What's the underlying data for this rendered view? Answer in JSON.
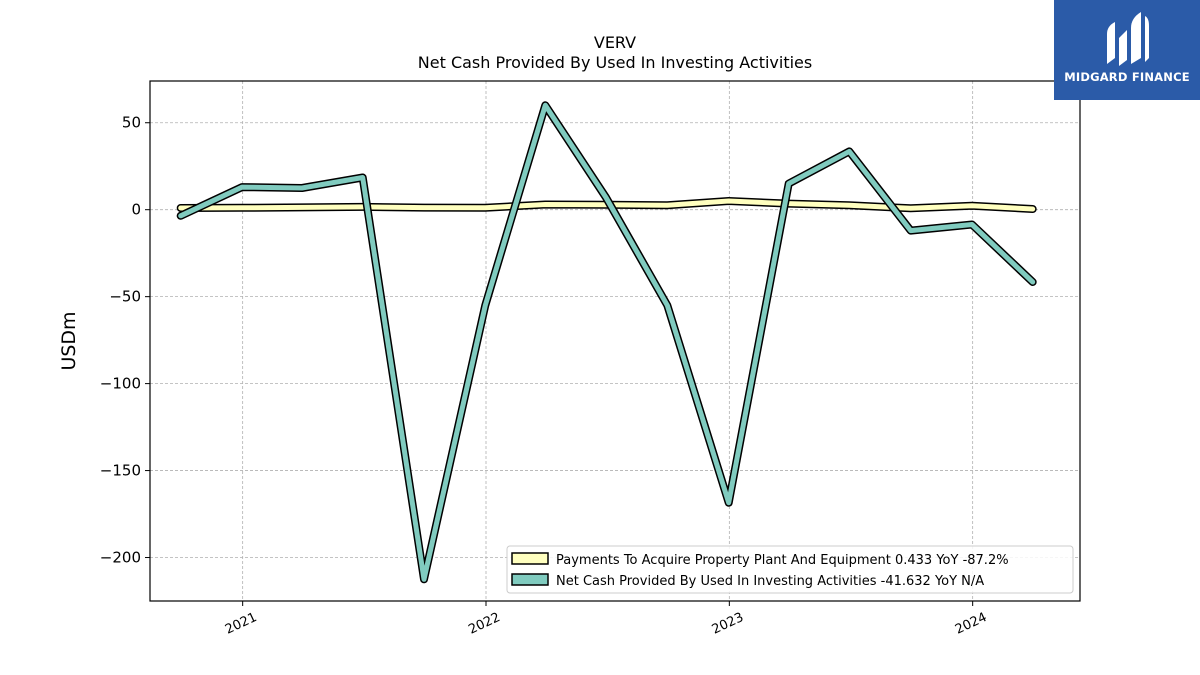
{
  "brand": {
    "name": "MIDGARD FINANCE",
    "icon": "midgard-finance-logo-icon",
    "color": "#2b5ba8"
  },
  "chart_data": {
    "type": "line",
    "title": "VERV",
    "subtitle": "Net Cash Provided By Used In Investing Activities",
    "xlabel": "",
    "ylabel": "USDm",
    "ylim": [
      -225,
      74
    ],
    "xlim": [
      "2020-08-15",
      "2024-06-10"
    ],
    "yticks": [
      50,
      0,
      -50,
      -100,
      -150,
      -200
    ],
    "ytick_labels": [
      "50",
      "0",
      "−50",
      "−100",
      "−150",
      "−200"
    ],
    "xticks": [
      "2021-01-01",
      "2022-01-01",
      "2023-01-01",
      "2024-01-01"
    ],
    "xtick_labels": [
      "2021",
      "2022",
      "2023",
      "2024"
    ],
    "grid": true,
    "legend_position": "lower-right",
    "series": [
      {
        "name": "Payments To Acquire Property Plant And Equipment",
        "legend_label": "Payments To Acquire Property Plant And Equipment  0.433 YoY -87.2%",
        "color": "#ffffbf",
        "x": [
          "2020-09-30",
          "2020-12-31",
          "2021-03-31",
          "2021-06-30",
          "2021-09-30",
          "2021-12-31",
          "2022-03-31",
          "2022-06-30",
          "2022-09-30",
          "2022-12-31",
          "2023-03-31",
          "2023-06-30",
          "2023-09-30",
          "2023-12-31",
          "2024-03-31"
        ],
        "values": [
          1.0,
          1.1,
          1.3,
          1.6,
          1.2,
          1.1,
          3.0,
          2.8,
          2.6,
          5.0,
          3.5,
          2.5,
          0.8,
          2.3,
          0.4
        ]
      },
      {
        "name": "Net Cash Provided By Used In Investing Activities",
        "legend_label": "Net Cash Provided By Used In Investing Activities  -41.632 YoY N/A",
        "color": "#80cbbf",
        "x": [
          "2020-09-30",
          "2020-12-31",
          "2021-03-31",
          "2021-06-30",
          "2021-09-30",
          "2021-12-31",
          "2022-03-31",
          "2022-06-30",
          "2022-09-30",
          "2022-12-31",
          "2023-03-31",
          "2023-06-30",
          "2023-09-30",
          "2023-12-31",
          "2024-03-31"
        ],
        "values": [
          -3.5,
          13.0,
          12.5,
          18.5,
          -212.5,
          -55.0,
          60.0,
          7.0,
          -55.0,
          -168.5,
          15.0,
          33.5,
          -12.0,
          -8.5,
          -41.6
        ]
      }
    ]
  }
}
